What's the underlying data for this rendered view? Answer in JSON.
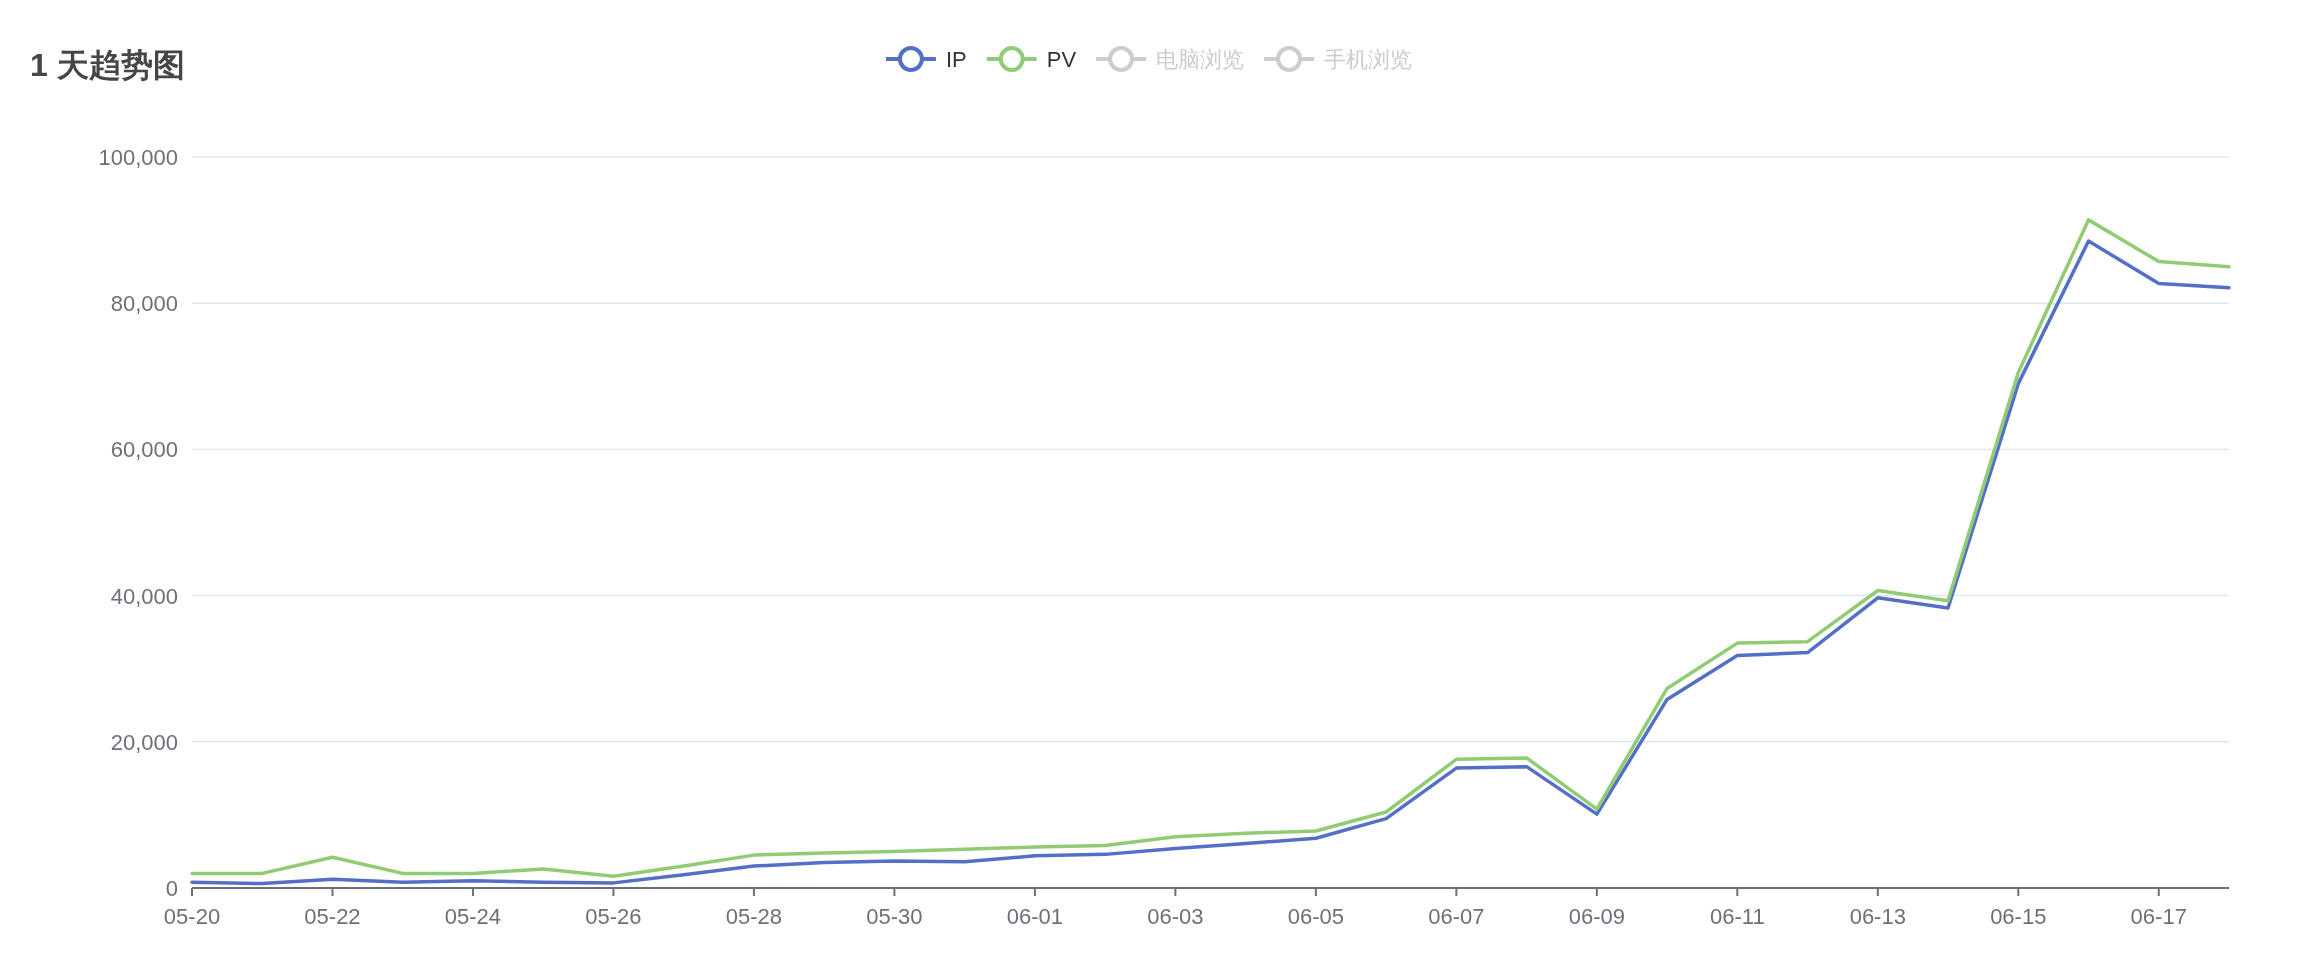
{
  "chart_data": {
    "type": "line",
    "title": "1 天趋势图",
    "categories": [
      "05-20",
      null,
      "05-22",
      null,
      "05-24",
      null,
      "05-26",
      null,
      "05-28",
      null,
      "05-30",
      null,
      "06-01",
      null,
      "06-03",
      null,
      "06-05",
      null,
      "06-07",
      null,
      "06-09",
      null,
      "06-11",
      null,
      "06-13",
      null,
      "06-15",
      null,
      "06-17",
      null
    ],
    "series": [
      {
        "name": "IP",
        "color": "#5470c6",
        "values": [
          800,
          600,
          1200,
          800,
          1000,
          800,
          700,
          1800,
          3000,
          3500,
          3700,
          3600,
          4400,
          4600,
          5400,
          6100,
          6800,
          9500,
          16400,
          16600,
          10100,
          25800,
          31800,
          32200,
          39700,
          38300,
          69000,
          88500,
          82700,
          82100
        ]
      },
      {
        "name": "PV",
        "color": "#91cc75",
        "values": [
          2000,
          2000,
          4200,
          2000,
          2000,
          2600,
          1600,
          3000,
          4500,
          4800,
          5000,
          5300,
          5600,
          5800,
          7000,
          7500,
          7800,
          10400,
          17600,
          17800,
          10800,
          27300,
          33500,
          33700,
          40700,
          39300,
          70500,
          91400,
          85700,
          85000
        ]
      },
      {
        "name": "电脑浏览",
        "color": "#cccccc",
        "values": [
          null,
          null,
          null,
          null,
          null,
          null,
          null,
          null,
          null,
          null,
          null,
          null,
          null,
          null,
          null,
          null,
          null,
          null,
          null,
          null,
          null,
          null,
          null,
          null,
          null,
          null,
          null,
          null,
          null,
          null
        ]
      },
      {
        "name": "手机浏览",
        "color": "#cccccc",
        "values": [
          null,
          null,
          null,
          null,
          null,
          null,
          null,
          null,
          null,
          null,
          null,
          null,
          null,
          null,
          null,
          null,
          null,
          null,
          null,
          null,
          null,
          null,
          null,
          null,
          null,
          null,
          null,
          null,
          null,
          null
        ]
      }
    ],
    "ylim": [
      0,
      100000
    ],
    "yticks": [
      {
        "value": 0,
        "label": "0"
      },
      {
        "value": 20000,
        "label": "20,000"
      },
      {
        "value": 40000,
        "label": "40,000"
      },
      {
        "value": 60000,
        "label": "60,000"
      },
      {
        "value": 80000,
        "label": "80,000"
      },
      {
        "value": 100000,
        "label": "100,000"
      }
    ],
    "grid": "y",
    "legend": "top",
    "line_style": "solid"
  }
}
